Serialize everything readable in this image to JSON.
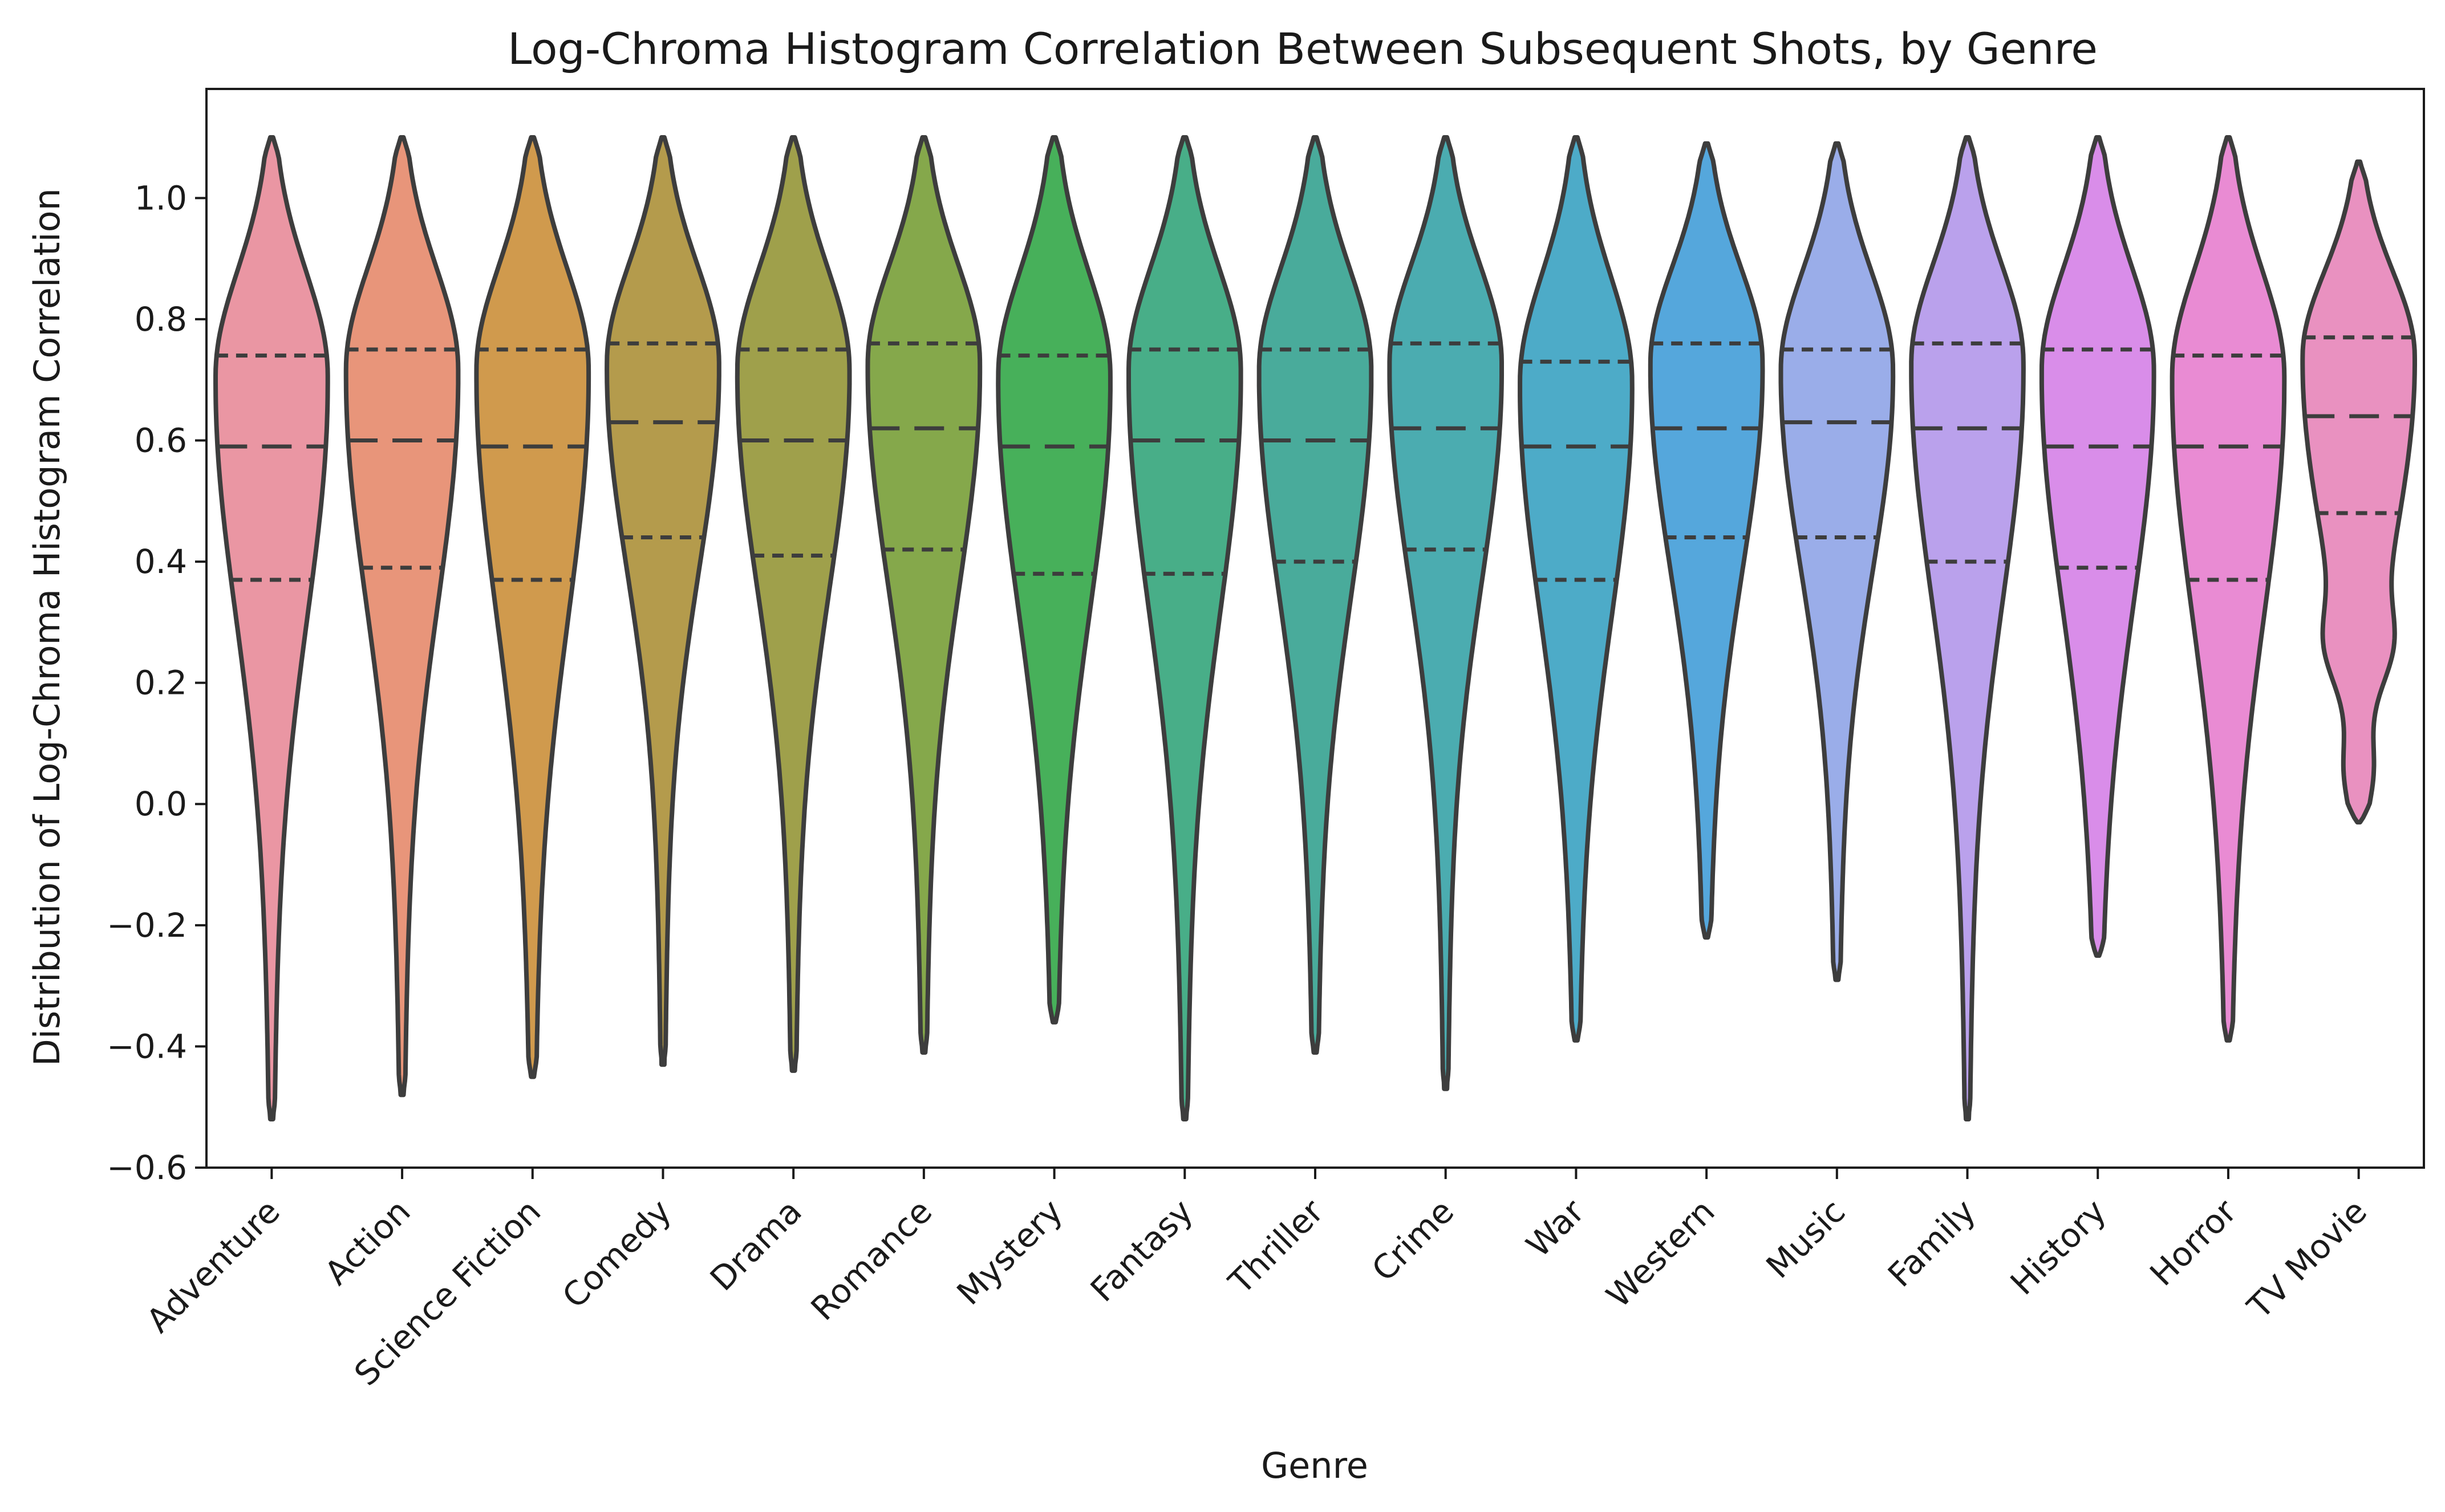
{
  "chart_data": {
    "type": "violin",
    "title": "Log-Chroma Histogram Correlation Between Subsequent Shots, by Genre",
    "xlabel": "Genre",
    "ylabel": "Distribution of Log-Chroma Histogram Correlation",
    "ylim": [
      -0.6,
      1.18
    ],
    "yticks": [
      -0.6,
      -0.4,
      -0.2,
      0.0,
      0.2,
      0.4,
      0.6,
      0.8,
      1.0
    ],
    "ytick_labels": [
      "−0.6",
      "−0.4",
      "−0.2",
      "0.0",
      "0.2",
      "0.4",
      "0.6",
      "0.8",
      "1.0"
    ],
    "grid": false,
    "legend": "none",
    "categories": [
      "Adventure",
      "Action",
      "Science Fiction",
      "Comedy",
      "Drama",
      "Romance",
      "Mystery",
      "Fantasy",
      "Thriller",
      "Crime",
      "War",
      "Western",
      "Music",
      "Family",
      "History",
      "Horror",
      "TV Movie"
    ],
    "colors": [
      "#ea96a3",
      "#e8957a",
      "#d09a4d",
      "#b49b4c",
      "#9fa04b",
      "#85a84b",
      "#47b05a",
      "#48ae88",
      "#49ab9b",
      "#4bacb0",
      "#4dabc8",
      "#55a7dc",
      "#9aade9",
      "#baa1ec",
      "#d98de9",
      "#e98bd3",
      "#e991c0"
    ],
    "min": [
      -0.52,
      -0.48,
      -0.45,
      -0.43,
      -0.44,
      -0.41,
      -0.36,
      -0.52,
      -0.41,
      -0.47,
      -0.39,
      -0.22,
      -0.29,
      -0.52,
      -0.25,
      -0.39,
      -0.03
    ],
    "max": [
      1.1,
      1.1,
      1.1,
      1.1,
      1.1,
      1.1,
      1.1,
      1.1,
      1.1,
      1.1,
      1.1,
      1.09,
      1.09,
      1.1,
      1.1,
      1.1,
      1.06
    ],
    "q1": [
      0.37,
      0.39,
      0.37,
      0.44,
      0.41,
      0.42,
      0.38,
      0.38,
      0.4,
      0.42,
      0.37,
      0.44,
      0.44,
      0.4,
      0.39,
      0.37,
      0.48
    ],
    "median": [
      0.59,
      0.6,
      0.59,
      0.63,
      0.6,
      0.62,
      0.59,
      0.6,
      0.6,
      0.62,
      0.59,
      0.62,
      0.63,
      0.62,
      0.59,
      0.59,
      0.64
    ],
    "q3": [
      0.74,
      0.75,
      0.75,
      0.76,
      0.75,
      0.76,
      0.74,
      0.75,
      0.75,
      0.76,
      0.73,
      0.76,
      0.75,
      0.76,
      0.75,
      0.74,
      0.77
    ]
  }
}
